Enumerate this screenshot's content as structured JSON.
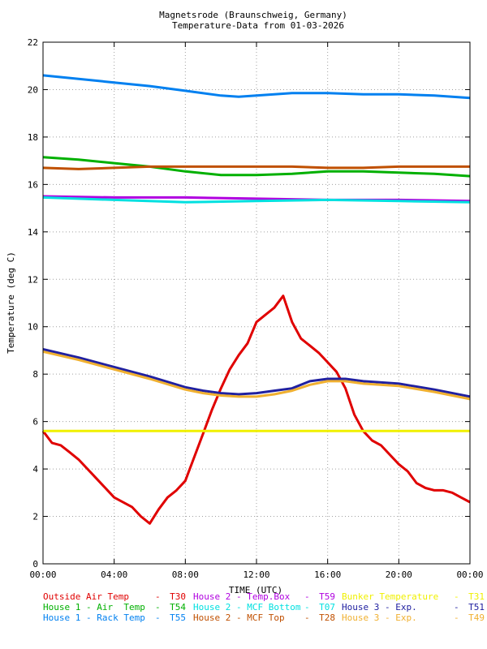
{
  "chart_data": {
    "type": "line",
    "title": "Magnetsrode (Braunschweig, Germany)",
    "subtitle": "Temperature-Data from 01-03-2026",
    "xlabel": "TIME (UTC)",
    "ylabel": "Temperature (deg C)",
    "xlim": [
      0,
      24
    ],
    "ylim": [
      0,
      22
    ],
    "x_ticks": [
      "00:00",
      "04:00",
      "08:00",
      "12:00",
      "16:00",
      "20:00",
      "00:00"
    ],
    "y_ticks": [
      "0",
      "2",
      "4",
      "6",
      "8",
      "10",
      "12",
      "14",
      "16",
      "18",
      "20",
      "22"
    ],
    "grid": true,
    "legend_position": "bottom",
    "series": [
      {
        "name": "Outside Air Temp",
        "code": "T30",
        "color": "#e00000",
        "x": [
          0,
          0.5,
          1,
          1.5,
          2,
          3,
          4,
          5,
          5.5,
          6,
          6.5,
          7,
          7.5,
          8,
          8.5,
          9,
          9.5,
          10,
          10.5,
          11,
          11.5,
          12,
          12.5,
          13,
          13.5,
          14,
          14.5,
          15,
          15.5,
          16,
          16.5,
          17,
          17.5,
          18,
          18.5,
          19,
          19.5,
          20,
          20.5,
          21,
          21.5,
          22,
          22.5,
          23,
          23.5,
          24
        ],
        "y": [
          5.6,
          5.1,
          5.0,
          4.7,
          4.4,
          3.6,
          2.8,
          2.4,
          2.0,
          1.7,
          2.3,
          2.8,
          3.1,
          3.5,
          4.5,
          5.5,
          6.5,
          7.4,
          8.2,
          8.8,
          9.3,
          10.2,
          10.5,
          10.8,
          11.3,
          10.2,
          9.5,
          9.2,
          8.9,
          8.5,
          8.1,
          7.4,
          6.3,
          5.6,
          5.2,
          5.0,
          4.6,
          4.2,
          3.9,
          3.4,
          3.2,
          3.1,
          3.1,
          3.0,
          2.8,
          2.6
        ]
      },
      {
        "name": "House 2 - Temp.Box",
        "code": "T59",
        "color": "#b000e0",
        "x": [
          0,
          4,
          8,
          12,
          16,
          20,
          24
        ],
        "y": [
          15.5,
          15.45,
          15.45,
          15.4,
          15.35,
          15.35,
          15.3
        ]
      },
      {
        "name": "Bunker Temperature",
        "code": "T31",
        "color": "#f0f000",
        "x": [
          0,
          4,
          8,
          12,
          16,
          20,
          24
        ],
        "y": [
          5.6,
          5.6,
          5.6,
          5.6,
          5.6,
          5.6,
          5.6
        ]
      },
      {
        "name": "House 1 - Air  Temp",
        "code": "T54",
        "color": "#00b000",
        "x": [
          0,
          2,
          4,
          6,
          8,
          10,
          12,
          14,
          16,
          18,
          20,
          22,
          24
        ],
        "y": [
          17.15,
          17.05,
          16.9,
          16.75,
          16.55,
          16.4,
          16.4,
          16.45,
          16.55,
          16.55,
          16.5,
          16.45,
          16.35
        ]
      },
      {
        "name": "House 2 - MCF Bottom",
        "code": "T07",
        "color": "#00e0e0",
        "x": [
          0,
          4,
          8,
          12,
          16,
          20,
          24
        ],
        "y": [
          15.45,
          15.35,
          15.25,
          15.3,
          15.35,
          15.3,
          15.25
        ]
      },
      {
        "name": "House 3 - Exp.",
        "code": "T51",
        "color": "#2020a0",
        "x": [
          0,
          2,
          4,
          6,
          8,
          9,
          10,
          11,
          12,
          13,
          14,
          15,
          16,
          17,
          18,
          20,
          22,
          24
        ],
        "y": [
          9.05,
          8.7,
          8.3,
          7.9,
          7.45,
          7.3,
          7.2,
          7.15,
          7.2,
          7.3,
          7.4,
          7.7,
          7.8,
          7.8,
          7.7,
          7.6,
          7.35,
          7.05
        ]
      },
      {
        "name": "House 1 - Rack Temp",
        "code": "T55",
        "color": "#0080f0",
        "x": [
          0,
          2,
          4,
          6,
          8,
          10,
          11,
          12,
          14,
          16,
          18,
          20,
          22,
          24
        ],
        "y": [
          20.6,
          20.45,
          20.3,
          20.15,
          19.95,
          19.75,
          19.7,
          19.75,
          19.85,
          19.85,
          19.8,
          19.8,
          19.75,
          19.65
        ]
      },
      {
        "name": "House 2 - MCF Top",
        "code": "T28",
        "color": "#c05000",
        "x": [
          0,
          2,
          4,
          6,
          8,
          10,
          12,
          14,
          16,
          18,
          20,
          22,
          24
        ],
        "y": [
          16.7,
          16.65,
          16.7,
          16.75,
          16.75,
          16.75,
          16.75,
          16.75,
          16.7,
          16.7,
          16.75,
          16.75,
          16.75
        ]
      },
      {
        "name": "House 3 - Exp.",
        "code": "T49",
        "color": "#f0b030",
        "x": [
          0,
          2,
          4,
          6,
          8,
          9,
          10,
          11,
          12,
          13,
          14,
          15,
          16,
          17,
          18,
          20,
          22,
          24
        ],
        "y": [
          8.95,
          8.6,
          8.2,
          7.8,
          7.35,
          7.2,
          7.1,
          7.05,
          7.05,
          7.15,
          7.3,
          7.55,
          7.7,
          7.7,
          7.6,
          7.5,
          7.25,
          6.95
        ]
      }
    ]
  }
}
